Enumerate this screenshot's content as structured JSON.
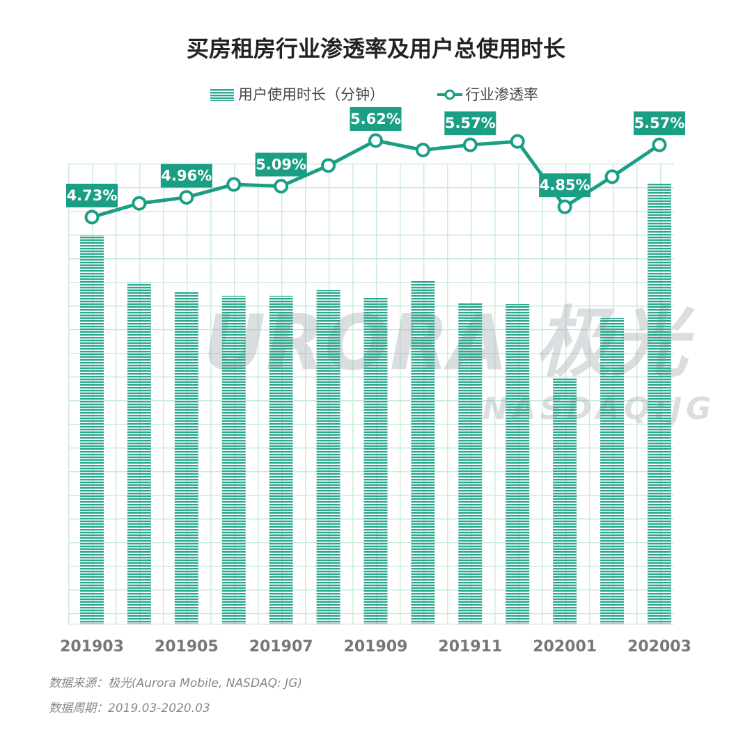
{
  "chart_data": {
    "type": "combo",
    "title": "买房租房行业渗透率及用户总使用时长",
    "categories": [
      "201903",
      null,
      "201905",
      null,
      "201907",
      null,
      "201909",
      null,
      "201911",
      null,
      "202001",
      null,
      "202003"
    ],
    "series": [
      {
        "name": "用户使用时长（分钟）",
        "type": "bar",
        "color": "#2aa88e",
        "values": [
          559,
          491,
          478,
          472,
          472,
          480,
          469,
          493,
          461,
          460,
          354,
          440,
          633
        ]
      },
      {
        "name": "行业渗透率",
        "type": "line",
        "color": "#1a9e84",
        "values": [
          4.73,
          4.89,
          4.96,
          5.11,
          5.09,
          5.33,
          5.62,
          5.51,
          5.57,
          5.61,
          4.85,
          5.2,
          5.57
        ],
        "value_labels": [
          "4.73%",
          null,
          "4.96%",
          null,
          "5.09%",
          null,
          "5.62%",
          null,
          "5.57%",
          null,
          "4.85%",
          null,
          "5.57%"
        ]
      }
    ],
    "watermark": {
      "text": "URORA 极光",
      "subtext": "NASDAQ:JG"
    },
    "notes": [
      "数据来源：极光(Aurora Mobile, NASDAQ: JG)",
      "数据周期：2019.03-2020.03"
    ]
  }
}
